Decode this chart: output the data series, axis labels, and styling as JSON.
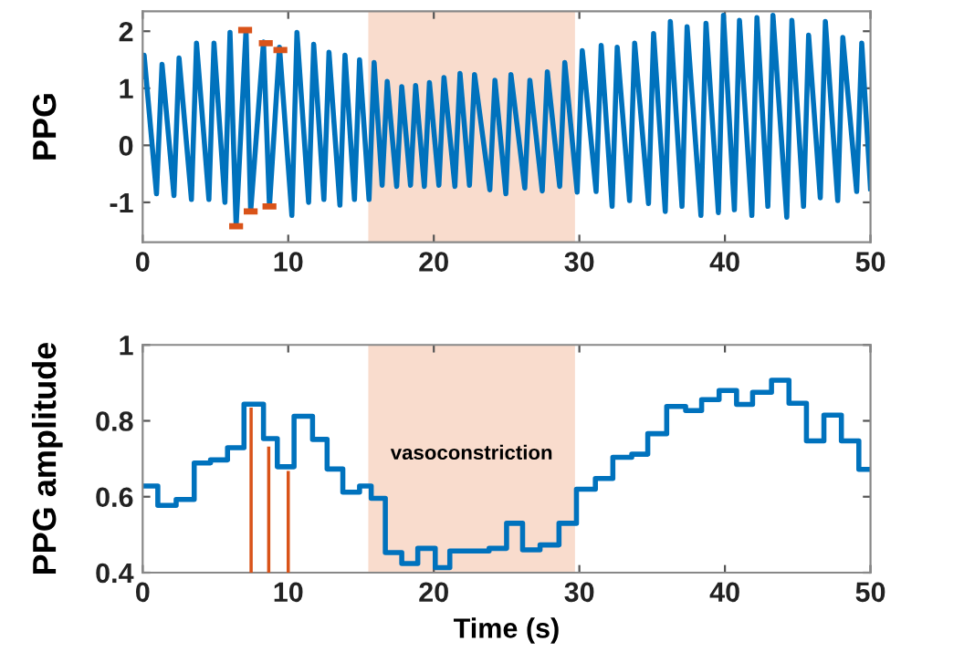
{
  "chart_data": [
    {
      "type": "line",
      "ylabel": "PPG",
      "xlim": [
        0,
        50
      ],
      "xticks": [
        0,
        10,
        20,
        30,
        40,
        50
      ],
      "ylim": [
        -1.7,
        2.35
      ],
      "yticks": [
        -1,
        0,
        1,
        2
      ],
      "grid": false,
      "bands": [
        {
          "axis": "x",
          "from": 15.5,
          "to": 29.7,
          "color": "#f9dccd"
        }
      ],
      "series": [
        {
          "color": "#0072bd",
          "x": [
            0,
            0.1,
            0.95,
            1.33,
            2.15,
            2.5,
            3.35,
            3.7,
            4.55,
            4.9,
            5.65,
            6.0,
            6.42,
            7.1,
            7.42,
            8.3,
            8.71,
            9.4,
            10.25,
            10.6,
            11.4,
            11.75,
            12.45,
            12.8,
            13.55,
            13.9,
            14.55,
            14.9,
            15.55,
            15.9,
            16.45,
            16.8,
            17.45,
            17.8,
            18.4,
            18.75,
            19.35,
            19.7,
            20.35,
            20.7,
            21.45,
            21.8,
            22.45,
            22.8,
            23.85,
            24.2,
            24.95,
            25.3,
            26.25,
            26.6,
            27.45,
            27.8,
            28.65,
            29.0,
            29.85,
            30.2,
            31.15,
            31.5,
            32.25,
            32.6,
            33.45,
            33.8,
            34.75,
            35.1,
            35.9,
            36.25,
            37.05,
            37.4,
            38.35,
            38.7,
            39.55,
            39.9,
            40.65,
            41.0,
            41.85,
            42.2,
            42.95,
            43.3,
            44.25,
            44.6,
            45.4,
            45.75,
            46.55,
            46.9,
            47.75,
            48.1,
            49.05,
            49.4,
            50
          ],
          "values": [
            1.2,
            1.58,
            -0.85,
            1.42,
            -0.88,
            1.53,
            -0.95,
            1.79,
            -0.95,
            1.79,
            -1.0,
            1.98,
            -1.42,
            2.02,
            -1.16,
            1.81,
            -1.07,
            1.72,
            -1.23,
            1.98,
            -1.0,
            1.77,
            -0.95,
            1.63,
            -1.05,
            1.58,
            -0.95,
            1.5,
            -0.95,
            1.45,
            -0.7,
            1.12,
            -0.72,
            1.03,
            -0.7,
            1.05,
            -0.72,
            1.1,
            -0.7,
            1.19,
            -0.72,
            1.26,
            -0.7,
            1.24,
            -0.78,
            1.14,
            -0.85,
            1.24,
            -0.75,
            1.14,
            -0.8,
            1.29,
            -0.72,
            1.45,
            -0.82,
            1.66,
            -0.81,
            1.75,
            -1.07,
            1.72,
            -0.97,
            1.79,
            -1.02,
            1.96,
            -1.16,
            2.17,
            -1.07,
            2.08,
            -1.23,
            2.14,
            -1.18,
            2.28,
            -1.13,
            2.19,
            -1.23,
            2.24,
            -1.07,
            2.28,
            -1.26,
            2.19,
            -1.07,
            1.93,
            -0.92,
            2.17,
            -0.97,
            1.89,
            -0.81,
            1.79,
            -0.76
          ]
        },
        {
          "type": "scatter",
          "color": "#d95319",
          "x": [
            7.04,
            8.46,
            9.46,
            6.42,
            7.42,
            8.71
          ],
          "values": [
            2.02,
            1.79,
            1.67,
            -1.42,
            -1.16,
            -1.07
          ]
        }
      ]
    },
    {
      "type": "step",
      "ylabel": "PPG amplitude",
      "xlabel": "Time (s)",
      "xlim": [
        0,
        50
      ],
      "xticks": [
        0,
        10,
        20,
        30,
        40,
        50
      ],
      "ylim": [
        0.4,
        1
      ],
      "yticks": [
        0.4,
        0.6,
        0.8,
        1
      ],
      "grid": false,
      "bands": [
        {
          "axis": "x",
          "from": 15.5,
          "to": 29.7,
          "color": "#f9dccd",
          "label": "vasoconstriction"
        }
      ],
      "series": [
        {
          "color": "#0072bd",
          "x": [
            0,
            1.04,
            2.3,
            3.54,
            4.66,
            5.83,
            6.96,
            8.3,
            9.25,
            10.4,
            11.67,
            12.67,
            13.75,
            14.9,
            15.7,
            16.67,
            17.8,
            18.9,
            20.1,
            21.1,
            22.2,
            23.8,
            25.0,
            26.1,
            27.3,
            28.6,
            29.8,
            31.1,
            32.3,
            33.6,
            34.7,
            36.0,
            37.3,
            38.4,
            39.6,
            40.8,
            41.9,
            43.2,
            44.4,
            45.6,
            46.8,
            48.0,
            49.2,
            50
          ],
          "values": [
            0.628,
            0.577,
            0.593,
            0.689,
            0.697,
            0.729,
            0.844,
            0.753,
            0.679,
            0.812,
            0.751,
            0.673,
            0.612,
            0.628,
            0.596,
            0.453,
            0.424,
            0.464,
            0.413,
            0.457,
            0.457,
            0.464,
            0.53,
            0.46,
            0.473,
            0.53,
            0.62,
            0.648,
            0.704,
            0.712,
            0.766,
            0.838,
            0.827,
            0.856,
            0.88,
            0.843,
            0.875,
            0.907,
            0.846,
            0.747,
            0.815,
            0.747,
            0.672,
            0.672
          ]
        },
        {
          "type": "bar",
          "color": "#d95319",
          "x": [
            7.45,
            8.66,
            10.0
          ],
          "values": [
            0.835,
            0.732,
            0.668
          ]
        }
      ]
    }
  ]
}
